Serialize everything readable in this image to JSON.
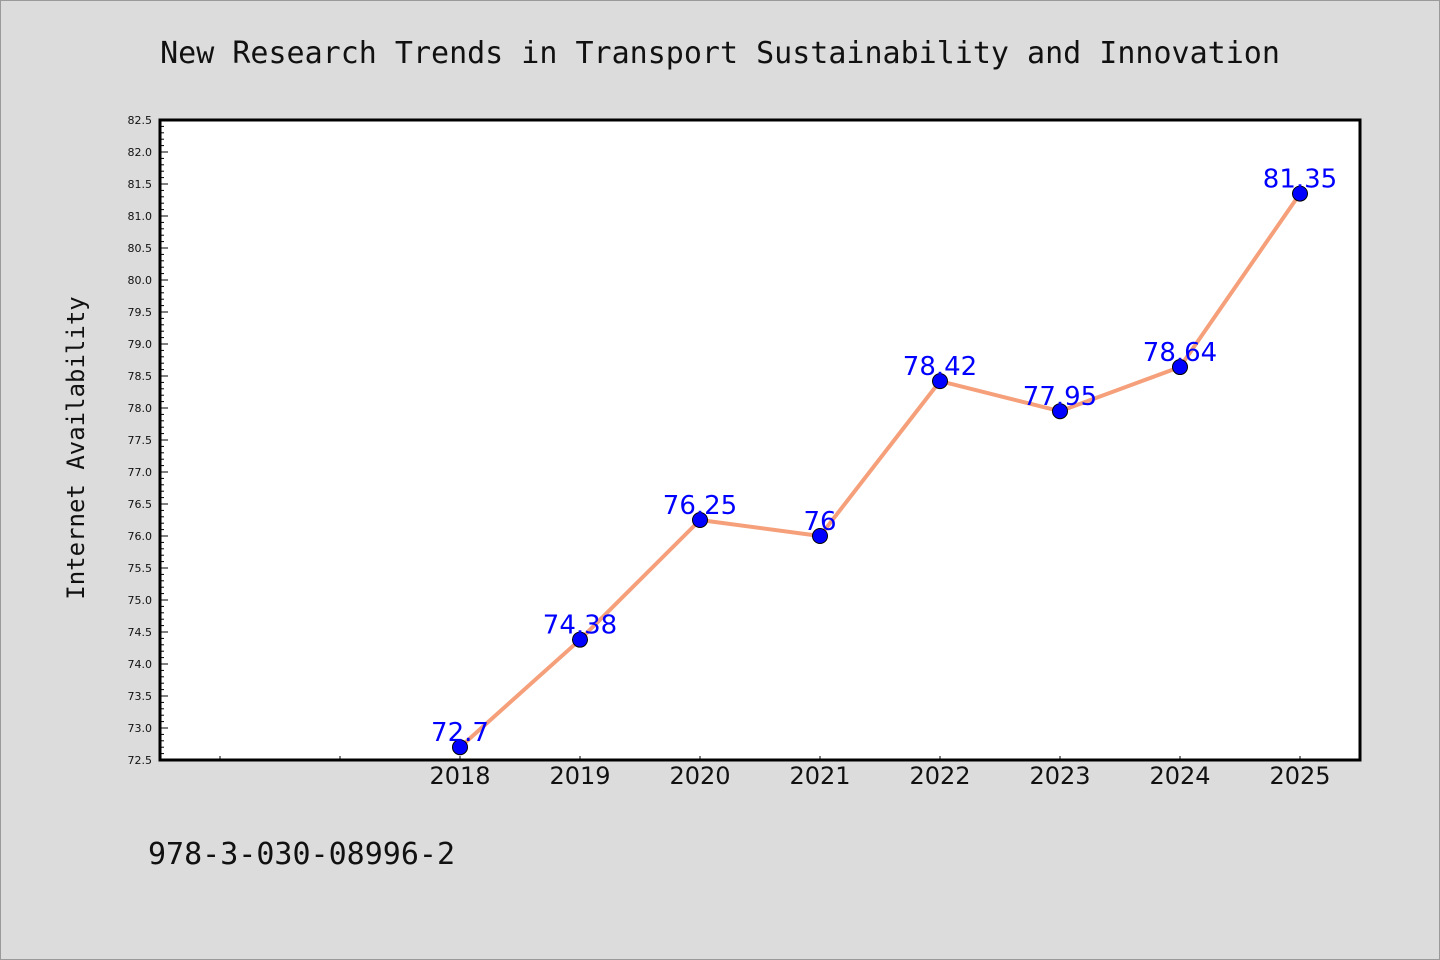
{
  "chart_data": {
    "type": "line",
    "title": "New Research Trends in Transport Sustainability and Innovation",
    "xlabel": "",
    "ylabel": "Internet Availability",
    "categories": [
      "2018",
      "2019",
      "2020",
      "2021",
      "2022",
      "2023",
      "2024",
      "2025"
    ],
    "series": [
      {
        "values": [
          72.7,
          74.38,
          76.25,
          76,
          78.42,
          77.95,
          78.64,
          81.35
        ],
        "data_labels": [
          "72.7",
          "74.38",
          "76.25",
          "76",
          "78.42",
          "77.95",
          "78.64",
          "81.35"
        ]
      }
    ],
    "ylim": [
      72.5,
      82.5
    ],
    "yticks": [
      "72.5",
      "73.0",
      "73.5",
      "74.0",
      "74.5",
      "75.0",
      "75.5",
      "76.0",
      "76.5",
      "77.0",
      "77.5",
      "78.0",
      "78.5",
      "79.0",
      "79.5",
      "80.0",
      "80.5",
      "81.0",
      "81.5",
      "82.0",
      "82.5"
    ],
    "grid": false,
    "legend": "none",
    "colors": {
      "line": "#f5a07a",
      "marker": "#0000ff",
      "data_label": "#0000ff",
      "plot_background": "#ffffff",
      "figure_background": "#dcdcdc"
    }
  },
  "footer_text": "978-3-030-08996-2"
}
